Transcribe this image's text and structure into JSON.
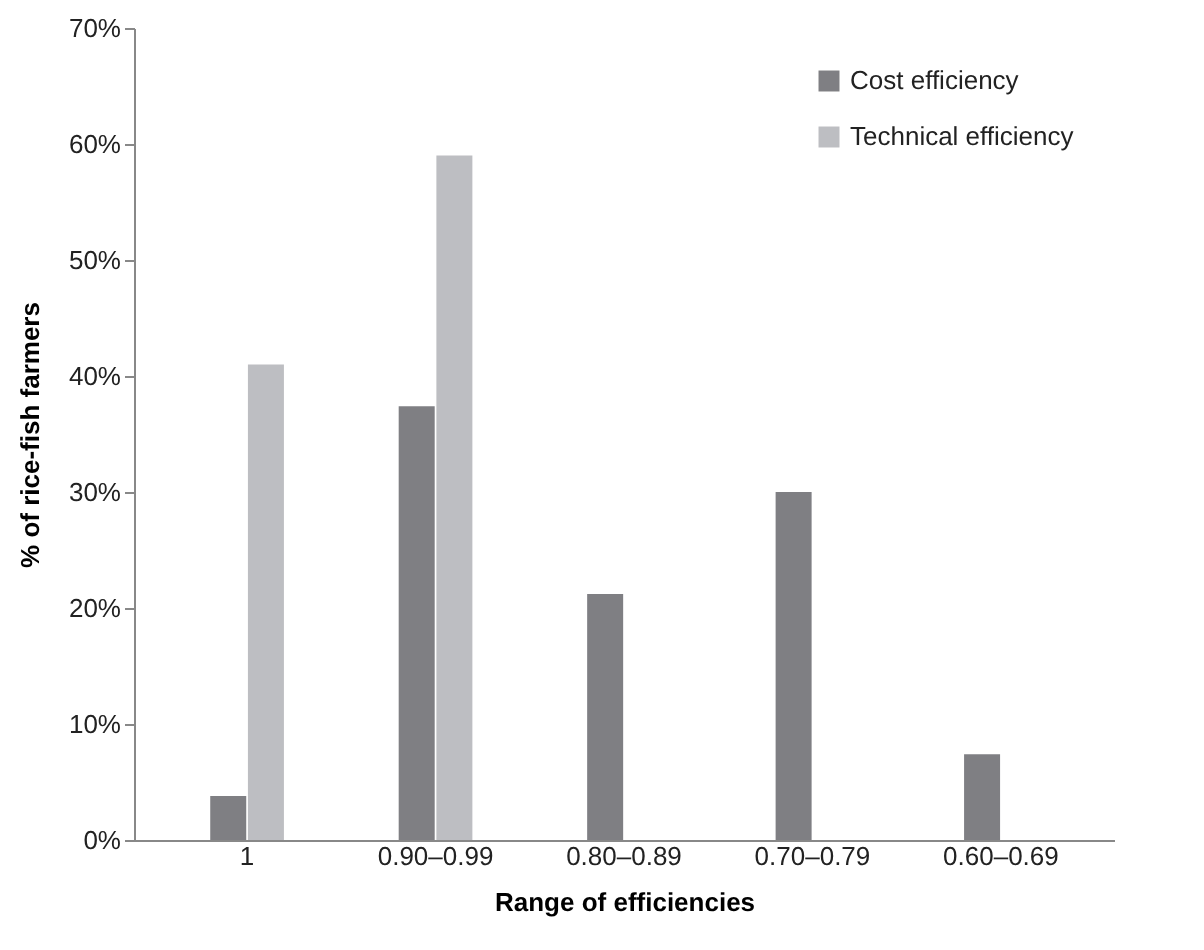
{
  "chart_data": {
    "type": "bar",
    "xlabel": "Range of efficiencies",
    "ylabel": "% of rice-fish farmers",
    "categories": [
      "1",
      "0.90–0.99",
      "0.80–0.89",
      "0.70–0.79",
      "0.60–0.69"
    ],
    "series": [
      {
        "name": "Cost efficiency",
        "color": "#7f7f83",
        "values": [
          3.8,
          37.4,
          21.2,
          30.0,
          7.4
        ]
      },
      {
        "name": "Technical efficiency",
        "color": "#bdbec2",
        "values": [
          41.0,
          59.0,
          null,
          null,
          null
        ]
      }
    ],
    "ylim": [
      0,
      70
    ],
    "yticks": [
      {
        "value": 0,
        "label": "0%"
      },
      {
        "value": 10,
        "label": "10%"
      },
      {
        "value": 20,
        "label": "20%"
      },
      {
        "value": 30,
        "label": "30%"
      },
      {
        "value": 40,
        "label": "40%"
      },
      {
        "value": 50,
        "label": "50%"
      },
      {
        "value": 60,
        "label": "60%"
      },
      {
        "value": 70,
        "label": "70%"
      }
    ],
    "grid": false,
    "legend": "top right"
  }
}
